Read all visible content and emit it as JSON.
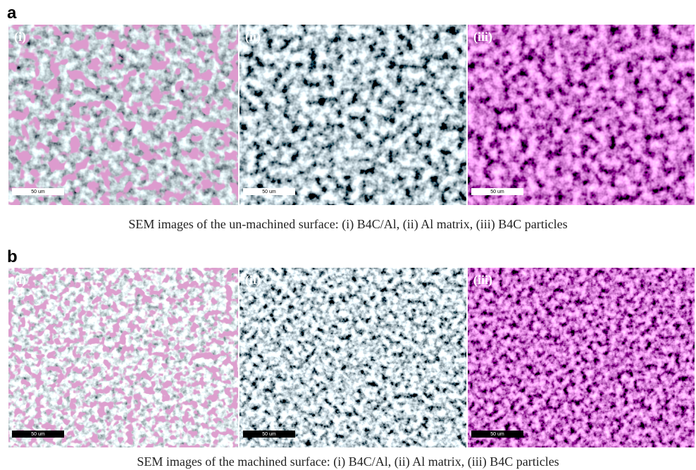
{
  "panels": [
    {
      "letter": "a",
      "images": [
        {
          "label": "(i)",
          "scale_bar": "50 um"
        },
        {
          "label": "(ii)",
          "scale_bar": "50 um"
        },
        {
          "label": "(iii)",
          "scale_bar": "50 um"
        }
      ],
      "caption": "SEM images of the un-machined surface: (i) B4C/Al, (ii) Al matrix, (iii) B4C particles"
    },
    {
      "letter": "b",
      "images": [
        {
          "label": "(i)",
          "scale_bar": "50 um"
        },
        {
          "label": "(ii)",
          "scale_bar": "50 um"
        },
        {
          "label": "(iii)",
          "scale_bar": "50 um"
        }
      ],
      "caption": "SEM images of the machined surface: (i) B4C/Al, (ii) Al matrix, (iii) B4C particles"
    }
  ]
}
